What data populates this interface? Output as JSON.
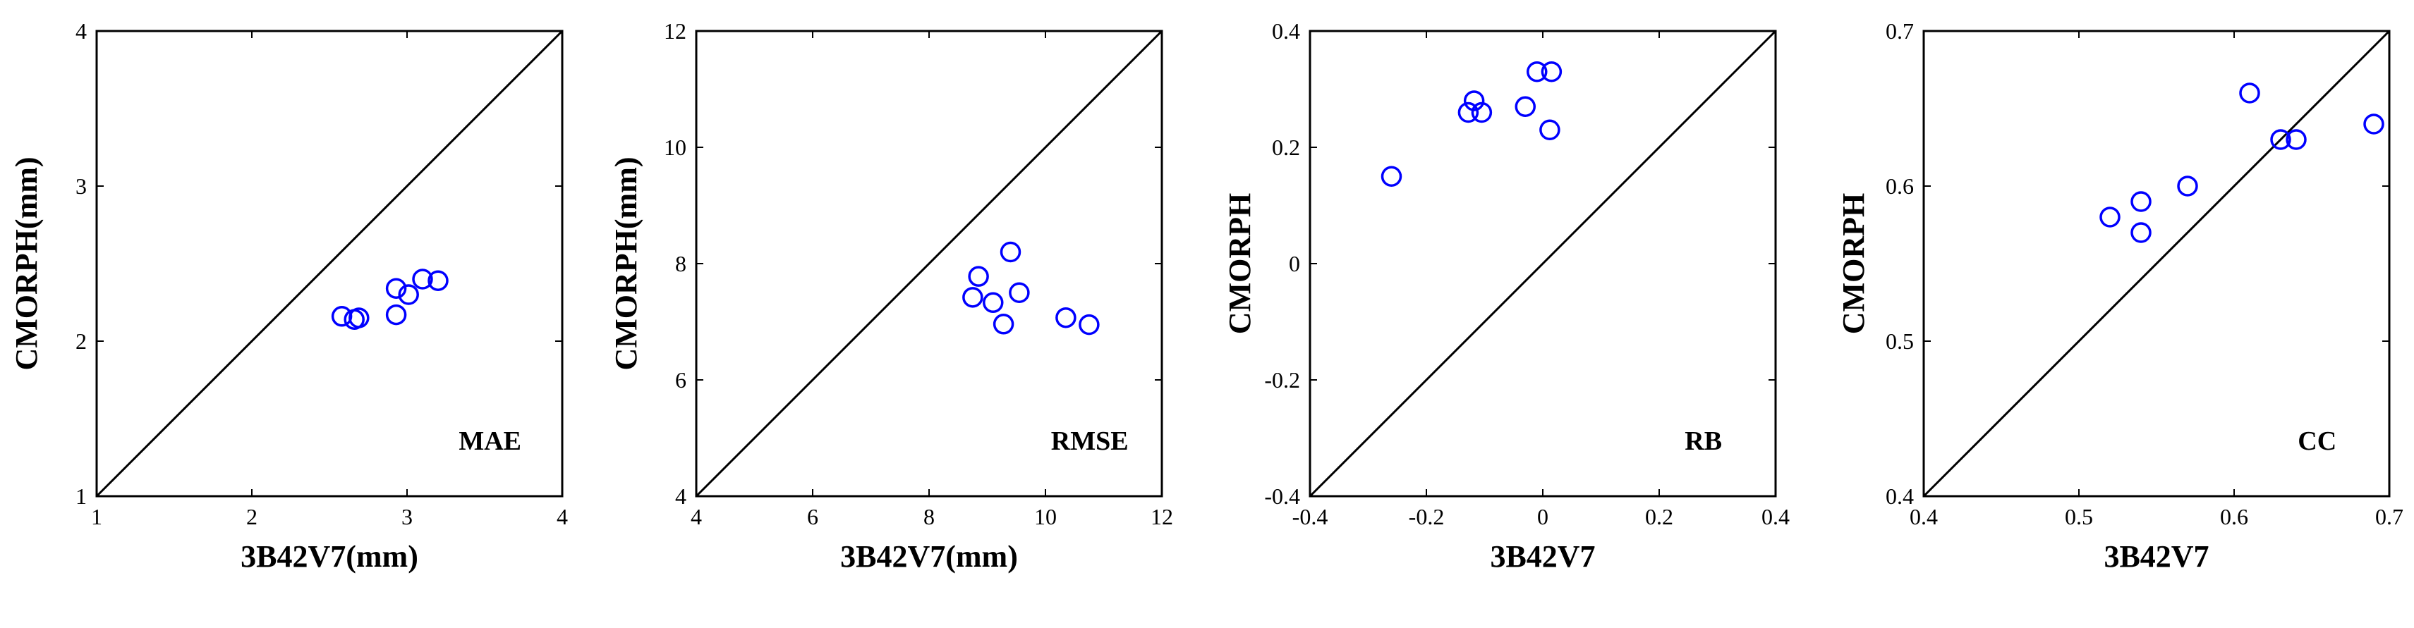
{
  "colors": {
    "marker": "#0000ff",
    "axis": "#000000",
    "line": "#000000"
  },
  "chart_data": [
    {
      "type": "scatter",
      "title": "MAE",
      "xlabel": "3B42V7(mm)",
      "ylabel": "CMORPH(mm)",
      "xlim": [
        1,
        4
      ],
      "ylim": [
        1,
        4
      ],
      "xticks": [
        1,
        2,
        3,
        4
      ],
      "yticks": [
        1,
        2,
        3,
        4
      ],
      "xtick_labels": [
        "1",
        "2",
        "3",
        "4"
      ],
      "ytick_labels": [
        "1",
        "2",
        "3",
        "4"
      ],
      "reference_line": "1:1",
      "points": [
        {
          "x": 2.58,
          "y": 2.16
        },
        {
          "x": 2.66,
          "y": 2.14
        },
        {
          "x": 2.69,
          "y": 2.15
        },
        {
          "x": 2.93,
          "y": 2.17
        },
        {
          "x": 2.93,
          "y": 2.34
        },
        {
          "x": 3.01,
          "y": 2.3
        },
        {
          "x": 3.1,
          "y": 2.4
        },
        {
          "x": 3.2,
          "y": 2.39
        }
      ]
    },
    {
      "type": "scatter",
      "title": "RMSE",
      "xlabel": "3B42V7(mm)",
      "ylabel": "CMORPH(mm)",
      "xlim": [
        4,
        12
      ],
      "ylim": [
        4,
        12
      ],
      "xticks": [
        4,
        6,
        8,
        10,
        12
      ],
      "yticks": [
        4,
        6,
        8,
        10,
        12
      ],
      "xtick_labels": [
        "4",
        "6",
        "8",
        "10",
        "12"
      ],
      "ytick_labels": [
        "4",
        "6",
        "8",
        "10",
        "12"
      ],
      "reference_line": "1:1",
      "points": [
        {
          "x": 8.75,
          "y": 7.42
        },
        {
          "x": 8.85,
          "y": 7.78
        },
        {
          "x": 9.1,
          "y": 7.33
        },
        {
          "x": 9.28,
          "y": 6.96
        },
        {
          "x": 9.4,
          "y": 8.2
        },
        {
          "x": 9.55,
          "y": 7.5
        },
        {
          "x": 10.35,
          "y": 7.07
        },
        {
          "x": 10.75,
          "y": 6.95
        }
      ]
    },
    {
      "type": "scatter",
      "title": "RB",
      "xlabel": "3B42V7",
      "ylabel": "CMORPH",
      "xlim": [
        -0.4,
        0.4
      ],
      "ylim": [
        -0.4,
        0.4
      ],
      "xticks": [
        -0.4,
        -0.2,
        0,
        0.2,
        0.4
      ],
      "yticks": [
        -0.4,
        -0.2,
        0,
        0.2,
        0.4
      ],
      "xtick_labels": [
        "-0.4",
        "-0.2",
        "0",
        "0.2",
        "0.4"
      ],
      "ytick_labels": [
        "-0.4",
        "-0.2",
        "0",
        "0.2",
        "0.4"
      ],
      "reference_line": "1:1",
      "points": [
        {
          "x": -0.26,
          "y": 0.15
        },
        {
          "x": -0.128,
          "y": 0.26
        },
        {
          "x": -0.118,
          "y": 0.28
        },
        {
          "x": -0.105,
          "y": 0.26
        },
        {
          "x": -0.03,
          "y": 0.27
        },
        {
          "x": -0.01,
          "y": 0.33
        },
        {
          "x": 0.015,
          "y": 0.33
        },
        {
          "x": 0.012,
          "y": 0.23
        }
      ]
    },
    {
      "type": "scatter",
      "title": "CC",
      "xlabel": "3B42V7",
      "ylabel": "CMORPH",
      "xlim": [
        0.4,
        0.7
      ],
      "ylim": [
        0.4,
        0.7
      ],
      "xticks": [
        0.4,
        0.5,
        0.6,
        0.7
      ],
      "yticks": [
        0.4,
        0.5,
        0.6,
        0.7
      ],
      "xtick_labels": [
        "0.4",
        "0.5",
        "0.6",
        "0.7"
      ],
      "ytick_labels": [
        "0.4",
        "0.5",
        "0.6",
        "0.7"
      ],
      "reference_line": "1:1",
      "points": [
        {
          "x": 0.52,
          "y": 0.58
        },
        {
          "x": 0.54,
          "y": 0.59
        },
        {
          "x": 0.54,
          "y": 0.57
        },
        {
          "x": 0.57,
          "y": 0.6
        },
        {
          "x": 0.61,
          "y": 0.66
        },
        {
          "x": 0.63,
          "y": 0.63
        },
        {
          "x": 0.64,
          "y": 0.63
        },
        {
          "x": 0.69,
          "y": 0.64
        }
      ]
    }
  ]
}
